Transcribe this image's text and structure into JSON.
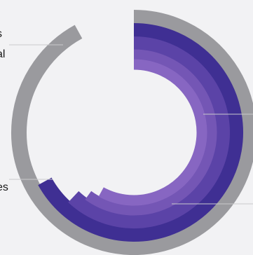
{
  "chart_data": {
    "type": "radial-bar",
    "title": "",
    "series": [
      {
        "value": 0.92,
        "color": "#9a9a9e"
      },
      {
        "value": 0.67,
        "color": "#3f2f93"
      },
      {
        "value": 0.62,
        "color": "#5b43a7"
      },
      {
        "value": 0.6,
        "color": "#7456b5"
      },
      {
        "value": 0.58,
        "color": "#8766c2"
      }
    ],
    "annotations": [
      {
        "lines": [
          "s",
          "al"
        ],
        "target_series": 0
      },
      {
        "lines": [
          "es"
        ],
        "target_series": 1
      },
      {
        "lines": [],
        "target_series": 4,
        "side": "right"
      },
      {
        "lines": [],
        "target_series": 2,
        "side": "right"
      }
    ]
  }
}
